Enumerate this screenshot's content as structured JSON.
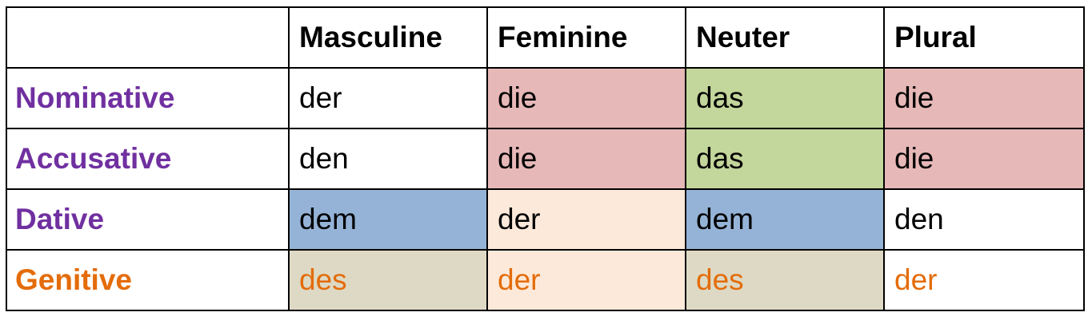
{
  "colors": {
    "purple": "#7030a0",
    "orange": "#e46c0a",
    "pink": "#e6b8b7",
    "green": "#c3d69b",
    "blue": "#95b3d7",
    "peach": "#fde9d9",
    "taupe": "#ddd9c4",
    "white": "#ffffff"
  },
  "table": {
    "corner": "",
    "headers": [
      "Masculine",
      "Feminine",
      "Neuter",
      "Plural"
    ],
    "rows": [
      {
        "label": "Nominative",
        "label_color": "#7030a0",
        "cells": [
          {
            "text": "der",
            "bg": "#ffffff",
            "color": "#000000"
          },
          {
            "text": "die",
            "bg": "#e6b8b7",
            "color": "#000000"
          },
          {
            "text": "das",
            "bg": "#c3d69b",
            "color": "#000000"
          },
          {
            "text": "die",
            "bg": "#e6b8b7",
            "color": "#000000"
          }
        ]
      },
      {
        "label": "Accusative",
        "label_color": "#7030a0",
        "cells": [
          {
            "text": "den",
            "bg": "#ffffff",
            "color": "#000000"
          },
          {
            "text": "die",
            "bg": "#e6b8b7",
            "color": "#000000"
          },
          {
            "text": "das",
            "bg": "#c3d69b",
            "color": "#000000"
          },
          {
            "text": "die",
            "bg": "#e6b8b7",
            "color": "#000000"
          }
        ]
      },
      {
        "label": "Dative",
        "label_color": "#7030a0",
        "cells": [
          {
            "text": "dem",
            "bg": "#95b3d7",
            "color": "#000000"
          },
          {
            "text": "der",
            "bg": "#fde9d9",
            "color": "#000000"
          },
          {
            "text": "dem",
            "bg": "#95b3d7",
            "color": "#000000"
          },
          {
            "text": "den",
            "bg": "#ffffff",
            "color": "#000000"
          }
        ]
      },
      {
        "label": "Genitive",
        "label_color": "#e46c0a",
        "cells": [
          {
            "text": "des",
            "bg": "#ddd9c4",
            "color": "#e46c0a"
          },
          {
            "text": "der",
            "bg": "#fde9d9",
            "color": "#e46c0a"
          },
          {
            "text": "des",
            "bg": "#ddd9c4",
            "color": "#e46c0a"
          },
          {
            "text": "der",
            "bg": "#ffffff",
            "color": "#e46c0a"
          }
        ]
      }
    ]
  }
}
